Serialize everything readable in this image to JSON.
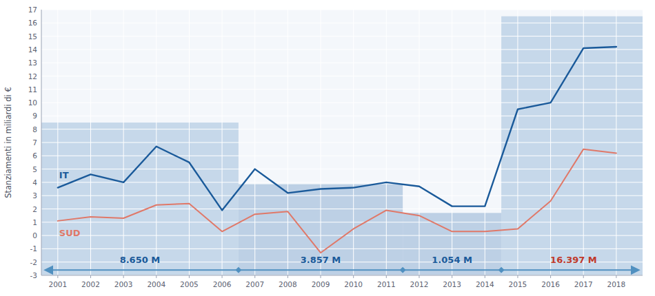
{
  "chart_data": {
    "type": "line",
    "ylabel": "Stanziamenti in miliardi di €",
    "x": [
      2001,
      2002,
      2003,
      2004,
      2005,
      2006,
      2007,
      2008,
      2009,
      2010,
      2011,
      2012,
      2013,
      2014,
      2015,
      2016,
      2017,
      2018
    ],
    "series": [
      {
        "name": "IT",
        "color": "#1a5a9a",
        "values": [
          3.6,
          4.6,
          4.0,
          6.7,
          5.5,
          1.9,
          5.0,
          3.2,
          3.5,
          3.6,
          4.0,
          3.7,
          2.2,
          2.2,
          9.5,
          10.0,
          14.1,
          14.2
        ]
      },
      {
        "name": "SUD",
        "color": "#e07868",
        "values": [
          1.1,
          1.4,
          1.3,
          2.3,
          2.4,
          0.3,
          1.6,
          1.8,
          -1.3,
          0.5,
          1.9,
          1.5,
          0.3,
          0.3,
          0.5,
          2.6,
          6.5,
          6.2
        ]
      }
    ],
    "xlim": [
      2000.5,
      2018.8
    ],
    "xticks": [
      2001,
      2002,
      2003,
      2004,
      2005,
      2006,
      2007,
      2008,
      2009,
      2010,
      2011,
      2012,
      2013,
      2014,
      2015,
      2016,
      2017,
      2018
    ],
    "ylim": [
      -3,
      17
    ],
    "yticks": [
      -3,
      -2,
      -1,
      0,
      1,
      2,
      3,
      4,
      5,
      6,
      7,
      8,
      9,
      10,
      11,
      12,
      13,
      14,
      15,
      16,
      17
    ],
    "grid": true,
    "bands": [
      {
        "x0": 2000.5,
        "x1": 2006.5,
        "top": 8.5,
        "color": "#adc8e0"
      },
      {
        "x0": 2006.5,
        "x1": 2011.5,
        "top": 3.857,
        "color": "#a0bcd8"
      },
      {
        "x0": 2011.5,
        "x1": 2014.5,
        "top": 1.7,
        "color": "#a0bcd8"
      },
      {
        "x0": 2014.5,
        "x1": 2018.8,
        "top": 16.5,
        "color": "#adc8e0"
      }
    ],
    "annotations": [
      {
        "text": "8.650 M",
        "x": 2003.5,
        "y": -1.85,
        "color": "#1a5a9a"
      },
      {
        "text": "3.857 M",
        "x": 2009.0,
        "y": -1.85,
        "color": "#1a5a9a"
      },
      {
        "text": "1.054 M",
        "x": 2013.0,
        "y": -1.85,
        "color": "#1a5a9a"
      },
      {
        "text": "16.397 M",
        "x": 2016.7,
        "y": -1.85,
        "color": "#c0392b"
      }
    ],
    "arrow": {
      "y": -2.6,
      "color": "#5090c0",
      "separators": [
        2006.5,
        2011.5,
        2014.5
      ]
    }
  }
}
